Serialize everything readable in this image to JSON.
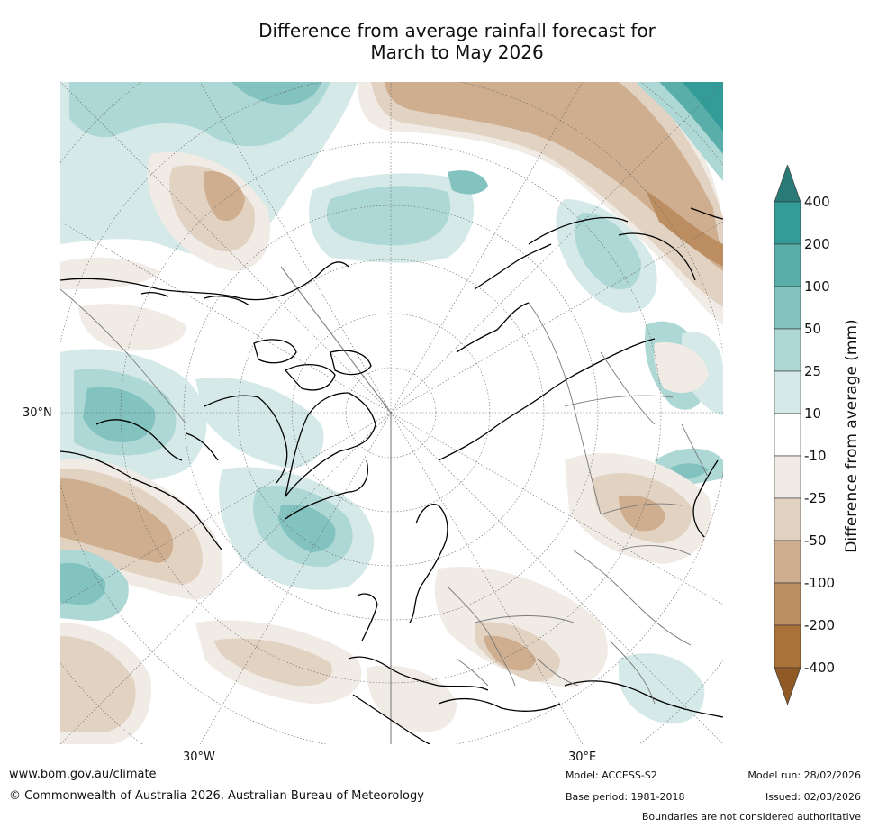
{
  "title_line1": "Difference from average rainfall forecast for",
  "title_line2": "March to May 2026",
  "axis_labels": {
    "lat_30n": "30°N",
    "lon_30w": "30°W",
    "lon_30e": "30°E"
  },
  "legend": {
    "title": "Difference from average (mm)",
    "ticks": [
      "400",
      "200",
      "100",
      "50",
      "25",
      "10",
      "-10",
      "-25",
      "-50",
      "-100",
      "-200",
      "-400"
    ],
    "colors": [
      "#2a7b78",
      "#339c98",
      "#5aaeaa",
      "#82c2bf",
      "#aed8d5",
      "#d5eae8",
      "#ffffff",
      "#f0ebe5",
      "#e2d2c2",
      "#ceae8f",
      "#bb8d61",
      "#a97238",
      "#8f5a26"
    ]
  },
  "footer": {
    "website": "www.bom.gov.au/climate",
    "copyright": "© Commonwealth of Australia 2026, Australian Bureau of Meteorology",
    "model": "Model: ACCESS-S2",
    "base_period": "Base period: 1981-2018",
    "model_run": "Model run: 28/02/2026",
    "issued": "Issued: 02/03/2026",
    "disclaimer": "Boundaries are not considered authoritative"
  }
}
